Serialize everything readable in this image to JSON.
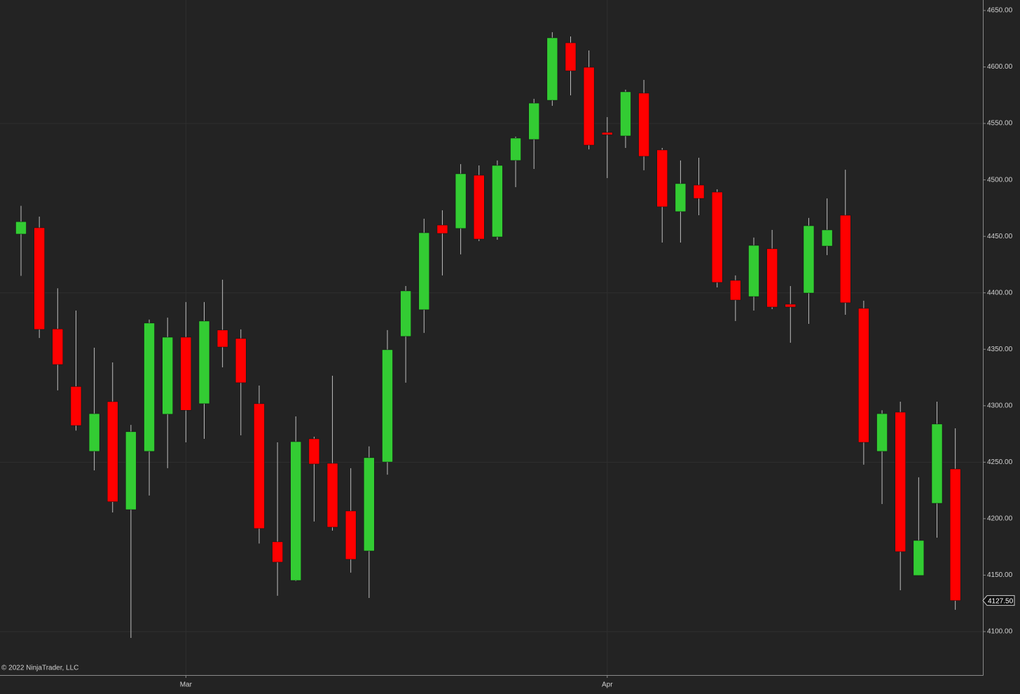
{
  "chart_data": {
    "type": "candlestick",
    "copyright": "© 2022 NinjaTrader, LLC",
    "categories": [
      null,
      null,
      null,
      null,
      null,
      null,
      null,
      null,
      null,
      "Mar",
      null,
      null,
      null,
      null,
      null,
      null,
      null,
      null,
      null,
      null,
      null,
      null,
      null,
      null,
      null,
      null,
      null,
      null,
      null,
      null,
      null,
      null,
      "Apr",
      null,
      null,
      null,
      null,
      null,
      null,
      null,
      null,
      null,
      null,
      null,
      null,
      null,
      null,
      null,
      null,
      null,
      null,
      null
    ],
    "open": [
      4452,
      4457.6,
      4368,
      4317,
      4259.6,
      4303.6,
      4208,
      4259.6,
      4292.5,
      4360.7,
      4301.8,
      4367,
      4359.5,
      4301.8,
      4179.5,
      4145.3,
      4270.7,
      4249,
      4206.8,
      4171.4,
      4250.2,
      4361.4,
      4385,
      4460,
      4457,
      4504.1,
      4449.5,
      4517.2,
      4535.8,
      4570.5,
      4621.4,
      4599.7,
      4542,
      4538.9,
      4576.8,
      4526.5,
      4471.9,
      4495.4,
      4489.2,
      4411,
      4396.7,
      4439,
      4389.9,
      4399.8,
      4441.4,
      4468.7,
      4386.2,
      4259.6,
      4294.3,
      4149.7,
      4213.6,
      4244
    ],
    "high": [
      4477,
      4467.5,
      4404,
      4384.3,
      4351.4,
      4338.4,
      4283,
      4376.3,
      4378,
      4391.8,
      4391.8,
      4411.6,
      4367.6,
      4317.9,
      4267.6,
      4290.6,
      4272.6,
      4326.6,
      4244.7,
      4264,
      4367,
      4406,
      4465.6,
      4473.1,
      4514,
      4512.8,
      4517.2,
      4538.3,
      4571.8,
      4630.8,
      4627,
      4614.6,
      4555.6,
      4579.9,
      4588.5,
      4528.3,
      4517.2,
      4519.6,
      4491.7,
      4415.4,
      4448.9,
      4455.7,
      4406,
      4466.3,
      4483.6,
      4509,
      4393,
      4296,
      4303.6,
      4236.6,
      4303.6,
      4280
    ],
    "low": [
      4415,
      4360,
      4313.6,
      4278,
      4242.8,
      4205.5,
      4094.4,
      4220.5,
      4244.7,
      4267.6,
      4270.7,
      4334,
      4273.8,
      4178,
      4131.7,
      4144.7,
      4197.5,
      4189.4,
      4152.2,
      4129.8,
      4239,
      4320.4,
      4364.5,
      4415.4,
      4434,
      4445.8,
      4447,
      4493.6,
      4509.7,
      4565.6,
      4574.9,
      4527,
      4501.6,
      4528.3,
      4508.5,
      4444.5,
      4444.5,
      4468.7,
      4404.8,
      4375,
      4384.3,
      4385.6,
      4355.8,
      4372.5,
      4433.4,
      4380.6,
      4247.8,
      4213,
      4136.6,
      4149.7,
      4183.2,
      4119.3
    ],
    "close": [
      4463,
      4367.6,
      4336.5,
      4282.5,
      4293,
      4215,
      4277,
      4373.2,
      4360.7,
      4296,
      4375,
      4352,
      4320.4,
      4191.3,
      4161.5,
      4268.2,
      4248.4,
      4192.5,
      4164,
      4254,
      4349.6,
      4401.7,
      4453.2,
      4452.6,
      4505.4,
      4447.6,
      4512.8,
      4537,
      4568,
      4625.8,
      4596.6,
      4530.8,
      4540,
      4578,
      4520.9,
      4476.2,
      4496.7,
      4483.6,
      4409.2,
      4393.6,
      4442,
      4387.4,
      4387.4,
      4459.4,
      4455.7,
      4391.2,
      4267.6,
      4293,
      4170.8,
      4180.7,
      4283.8,
      4127.5
    ],
    "up_color": "#33cc33",
    "down_color": "#ff0000",
    "ylim": [
      4061.5,
      4659.3
    ],
    "yticks": [
      {
        "value": 4650,
        "label": "4650.00"
      },
      {
        "value": 4600,
        "label": "4600.00"
      },
      {
        "value": 4550,
        "label": "4550.00"
      },
      {
        "value": 4500,
        "label": "4500.00"
      },
      {
        "value": 4450,
        "label": "4450.00"
      },
      {
        "value": 4400,
        "label": "4400.00"
      },
      {
        "value": 4350,
        "label": "4350.00"
      },
      {
        "value": 4300,
        "label": "4300.00"
      },
      {
        "value": 4250,
        "label": "4250.00"
      },
      {
        "value": 4200,
        "label": "4200.00"
      },
      {
        "value": 4150,
        "label": "4150.00"
      },
      {
        "value": 4100,
        "label": "4100.00"
      }
    ],
    "last_price": {
      "value": 4127.5,
      "label": "4127.50"
    },
    "grid": true
  }
}
